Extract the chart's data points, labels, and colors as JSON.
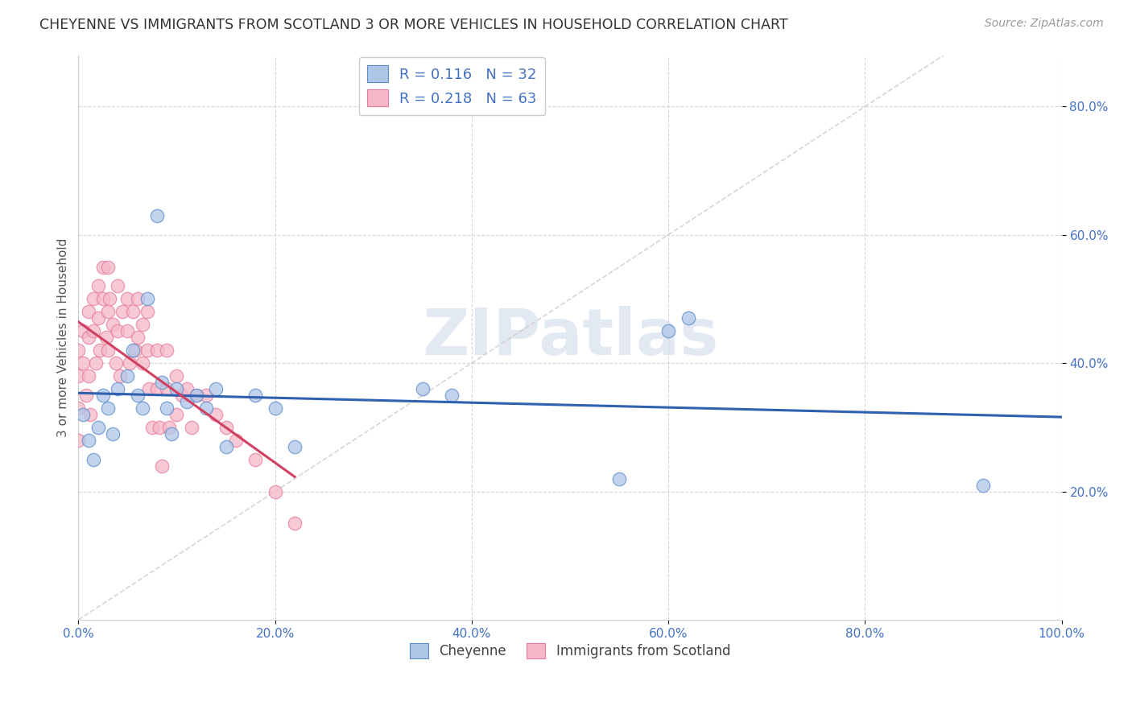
{
  "title": "CHEYENNE VS IMMIGRANTS FROM SCOTLAND 3 OR MORE VEHICLES IN HOUSEHOLD CORRELATION CHART",
  "source": "Source: ZipAtlas.com",
  "ylabel": "3 or more Vehicles in Household",
  "xlabel": "",
  "cheyenne_color": "#aec6e8",
  "scotland_color": "#f4b8c8",
  "cheyenne_edge_color": "#5b8cc8",
  "scotland_edge_color": "#e87a99",
  "cheyenne_line_color": "#3060b0",
  "scotland_line_color": "#d04060",
  "R_cheyenne": 0.116,
  "N_cheyenne": 32,
  "R_scotland": 0.218,
  "N_scotland": 63,
  "watermark_text": "ZIPatlas",
  "xlim": [
    0,
    1.0
  ],
  "ylim": [
    0,
    0.88
  ],
  "xticks": [
    0.0,
    0.2,
    0.4,
    0.6,
    0.8,
    1.0
  ],
  "yticks": [
    0.2,
    0.4,
    0.6,
    0.8
  ],
  "cheyenne_x": [
    0.005,
    0.01,
    0.015,
    0.02,
    0.025,
    0.03,
    0.035,
    0.04,
    0.05,
    0.055,
    0.06,
    0.065,
    0.07,
    0.08,
    0.085,
    0.09,
    0.095,
    0.1,
    0.11,
    0.12,
    0.13,
    0.14,
    0.15,
    0.18,
    0.2,
    0.22,
    0.35,
    0.38,
    0.55,
    0.6,
    0.62,
    0.92
  ],
  "cheyenne_y": [
    0.32,
    0.28,
    0.25,
    0.3,
    0.35,
    0.33,
    0.29,
    0.36,
    0.38,
    0.42,
    0.35,
    0.33,
    0.5,
    0.63,
    0.37,
    0.33,
    0.29,
    0.36,
    0.34,
    0.35,
    0.33,
    0.36,
    0.27,
    0.35,
    0.33,
    0.27,
    0.36,
    0.35,
    0.22,
    0.45,
    0.47,
    0.21
  ],
  "scotland_x": [
    0.0,
    0.0,
    0.0,
    0.0,
    0.005,
    0.005,
    0.008,
    0.01,
    0.01,
    0.01,
    0.012,
    0.015,
    0.015,
    0.018,
    0.02,
    0.02,
    0.022,
    0.025,
    0.025,
    0.028,
    0.03,
    0.03,
    0.03,
    0.032,
    0.035,
    0.038,
    0.04,
    0.04,
    0.042,
    0.045,
    0.05,
    0.05,
    0.052,
    0.055,
    0.058,
    0.06,
    0.06,
    0.065,
    0.065,
    0.07,
    0.07,
    0.072,
    0.075,
    0.08,
    0.08,
    0.082,
    0.085,
    0.09,
    0.09,
    0.092,
    0.1,
    0.1,
    0.105,
    0.11,
    0.115,
    0.12,
    0.13,
    0.14,
    0.15,
    0.16,
    0.18,
    0.2,
    0.22
  ],
  "scotland_y": [
    0.42,
    0.38,
    0.33,
    0.28,
    0.45,
    0.4,
    0.35,
    0.48,
    0.44,
    0.38,
    0.32,
    0.5,
    0.45,
    0.4,
    0.52,
    0.47,
    0.42,
    0.55,
    0.5,
    0.44,
    0.55,
    0.48,
    0.42,
    0.5,
    0.46,
    0.4,
    0.52,
    0.45,
    0.38,
    0.48,
    0.5,
    0.45,
    0.4,
    0.48,
    0.42,
    0.5,
    0.44,
    0.46,
    0.4,
    0.48,
    0.42,
    0.36,
    0.3,
    0.42,
    0.36,
    0.3,
    0.24,
    0.42,
    0.36,
    0.3,
    0.38,
    0.32,
    0.35,
    0.36,
    0.3,
    0.35,
    0.35,
    0.32,
    0.3,
    0.28,
    0.25,
    0.2,
    0.15
  ],
  "figsize": [
    14.06,
    8.92
  ],
  "dpi": 100
}
